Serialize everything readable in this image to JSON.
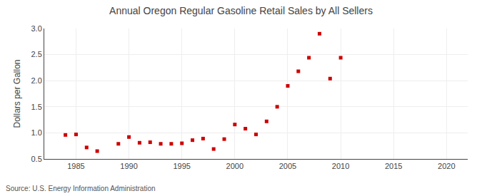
{
  "chart_data": {
    "type": "scatter",
    "title": "Annual Oregon Regular Gasoline Retail Sales by All Sellers",
    "ylabel": "Dollars per Gallon",
    "source": "Source: U.S. Energy Information Administration",
    "x": [
      1984,
      1985,
      1986,
      1987,
      1989,
      1990,
      1991,
      1992,
      1993,
      1994,
      1995,
      1996,
      1997,
      1998,
      1999,
      2000,
      2001,
      2002,
      2003,
      2004,
      2005,
      2006,
      2007,
      2008,
      2009,
      2010
    ],
    "values": [
      0.96,
      0.97,
      0.72,
      0.65,
      0.79,
      0.92,
      0.81,
      0.82,
      0.79,
      0.79,
      0.8,
      0.86,
      0.89,
      0.69,
      0.88,
      1.16,
      1.08,
      0.97,
      1.22,
      1.5,
      1.9,
      2.18,
      2.44,
      2.9,
      2.04,
      2.44
    ],
    "color": "#cc0000",
    "marker": "square",
    "xlim": [
      1982,
      2022
    ],
    "ylim": [
      0.5,
      3.0
    ],
    "xticks": [
      1985,
      1990,
      1995,
      2000,
      2005,
      2010,
      2015,
      2020
    ],
    "yticks": [
      0.5,
      {
        "value": 1.0,
        "label": "1.0"
      },
      1.5,
      {
        "value": 2.0,
        "label": "2.0"
      },
      2.5,
      {
        "value": 3.0,
        "label": "3.0"
      }
    ],
    "grid": true
  }
}
